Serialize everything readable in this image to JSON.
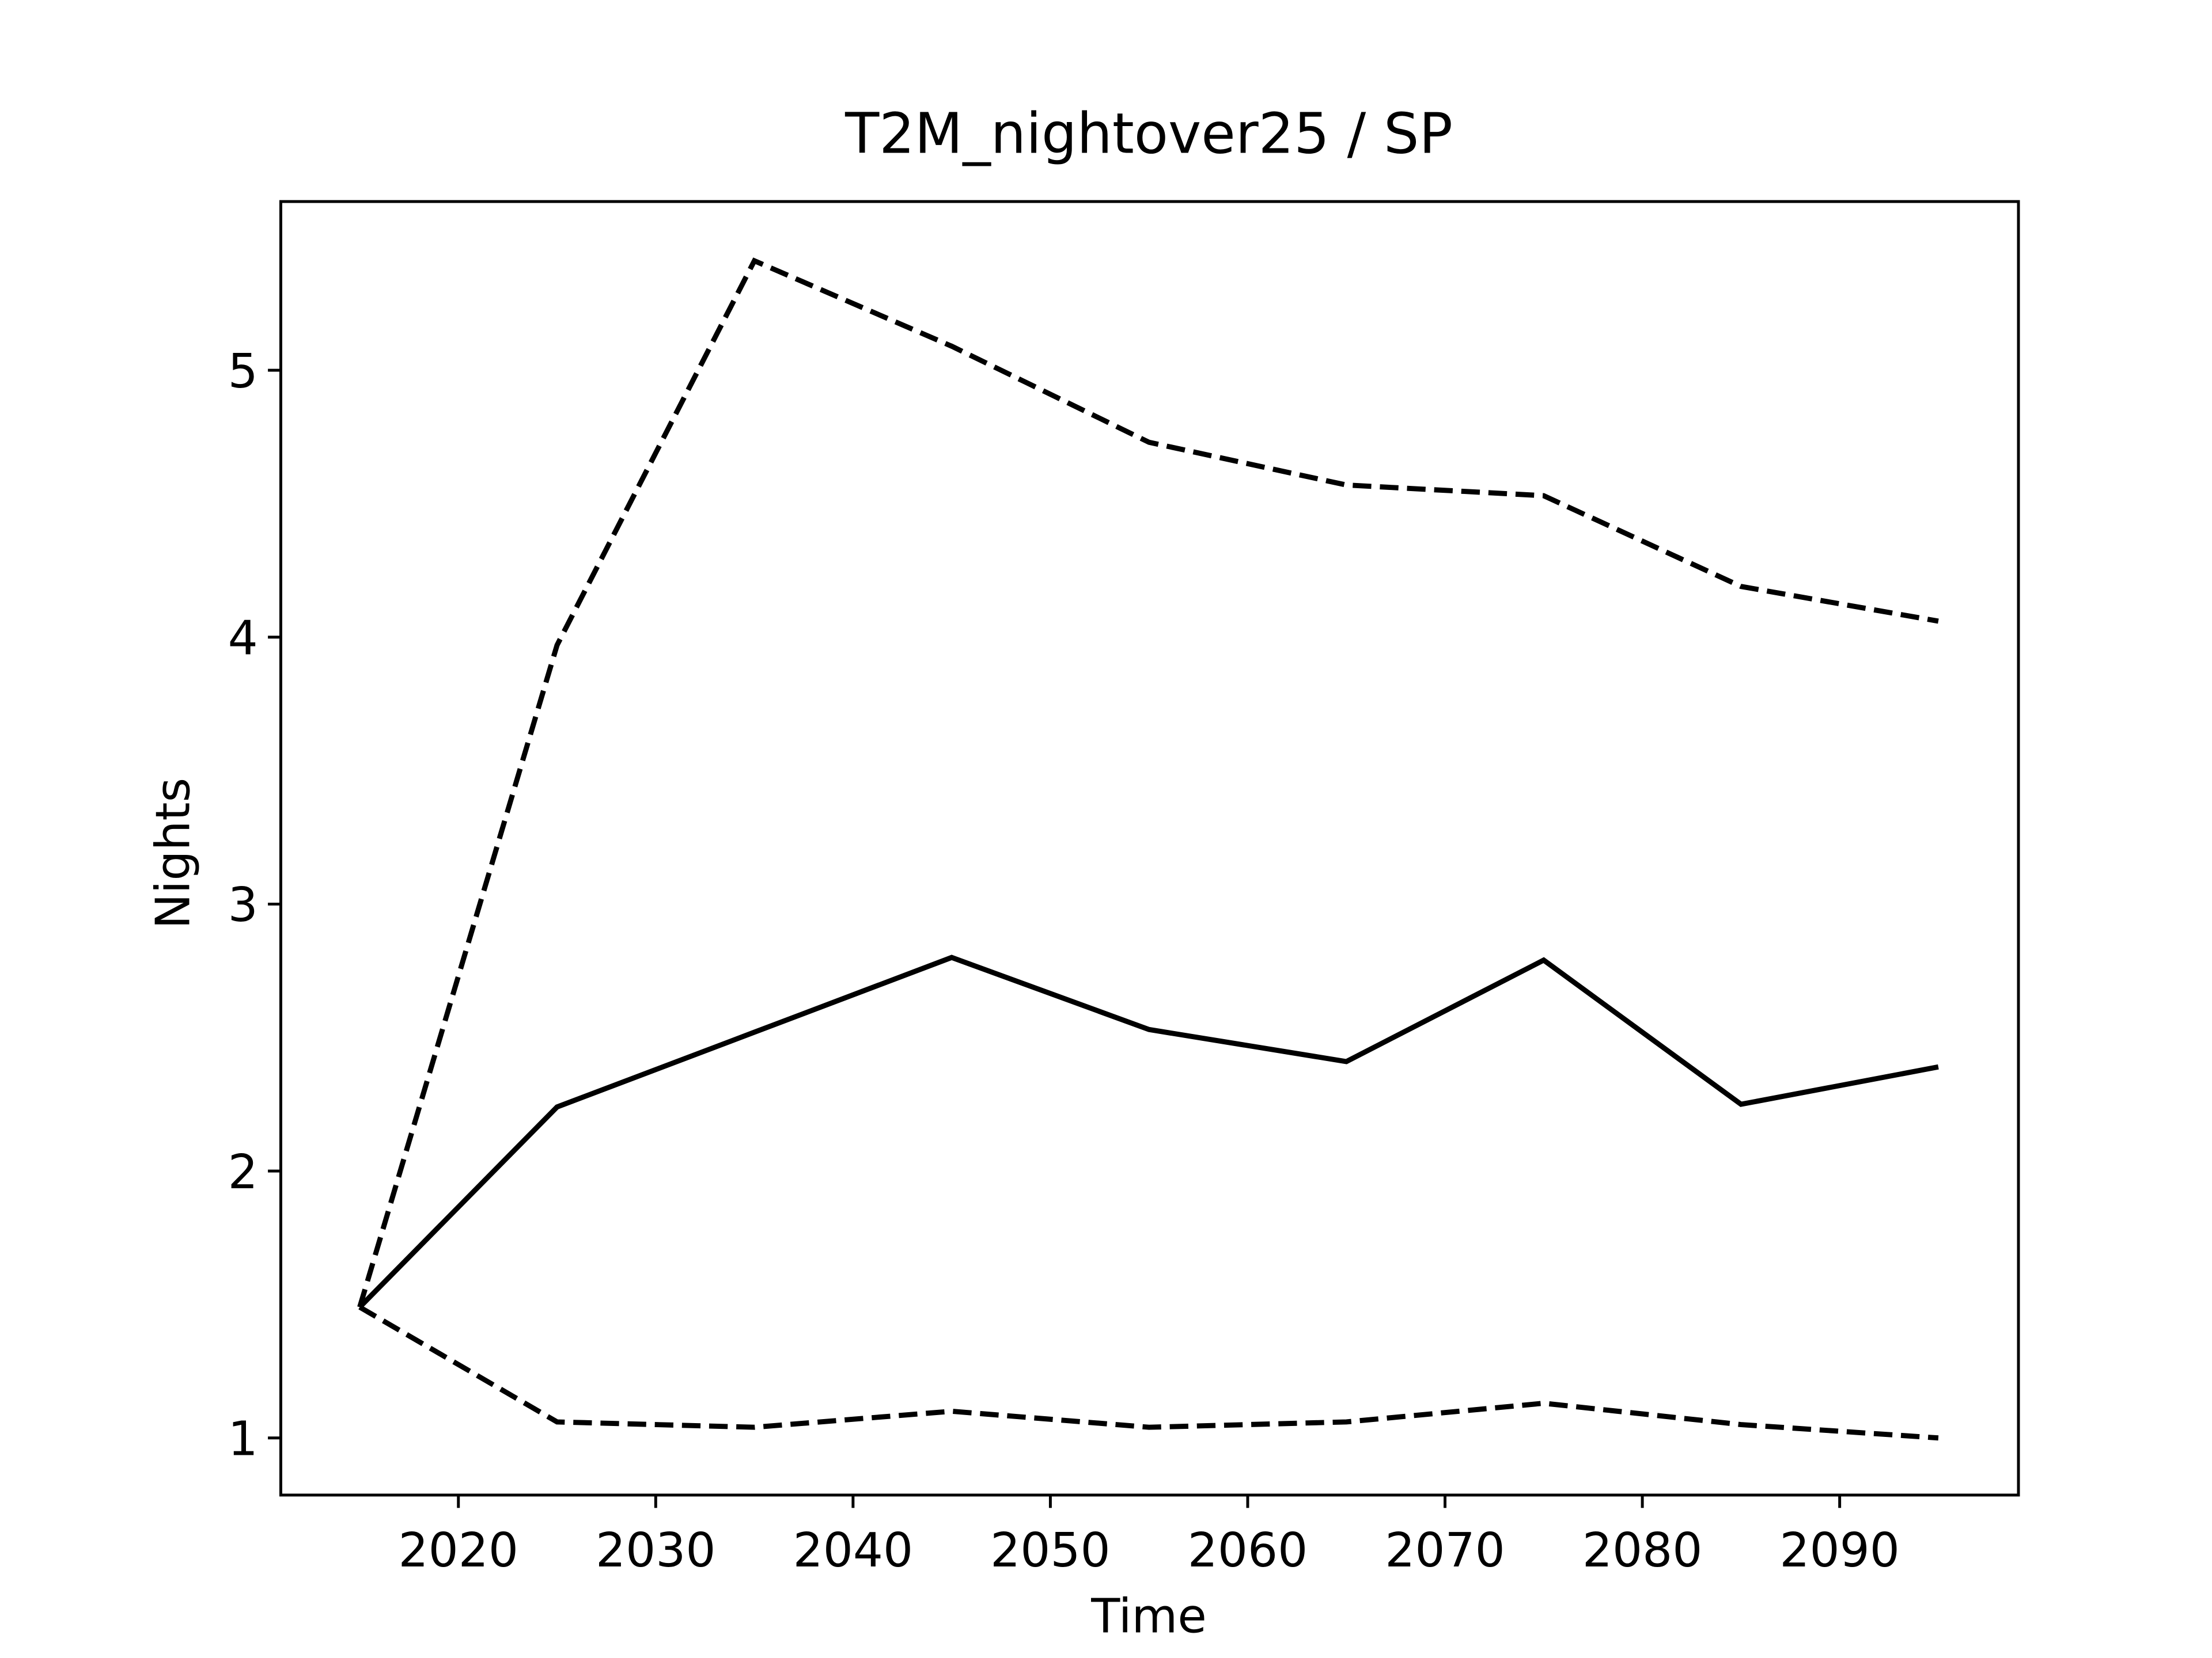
{
  "chart_data": {
    "type": "line",
    "title": "T2M_nightover25 / SP",
    "xlabel": "Time",
    "ylabel": "Nights",
    "x": [
      2015,
      2025,
      2035,
      2045,
      2055,
      2065,
      2075,
      2085,
      2095
    ],
    "series": [
      {
        "color": "#000000",
        "dash": false,
        "values": [
          1.49,
          2.24,
          2.52,
          2.8,
          2.53,
          2.41,
          2.79,
          2.25,
          2.39
        ]
      },
      {
        "color": "#000000",
        "dash": true,
        "values": [
          1.49,
          3.97,
          5.41,
          5.09,
          4.73,
          4.57,
          4.53,
          4.19,
          4.06
        ]
      },
      {
        "color": "#000000",
        "dash": true,
        "values": [
          1.49,
          1.06,
          1.04,
          1.1,
          1.04,
          1.06,
          1.13,
          1.05,
          1.0
        ]
      }
    ],
    "xlim": [
      2011,
      2099.06
    ],
    "ylim": [
      0.786,
      5.632
    ],
    "xticks": [
      2020,
      2030,
      2040,
      2050,
      2060,
      2070,
      2080,
      2090
    ],
    "yticks": [
      1,
      2,
      3,
      4,
      5
    ],
    "grid": false
  }
}
